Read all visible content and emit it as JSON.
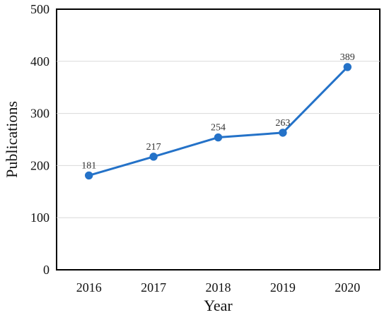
{
  "chart_data": {
    "type": "line",
    "title": "",
    "xlabel": "Year",
    "ylabel": "Publications",
    "categories": [
      "2016",
      "2017",
      "2018",
      "2019",
      "2020"
    ],
    "series": [
      {
        "values": [
          181,
          217,
          254,
          263,
          389
        ],
        "color": "#2472C8"
      }
    ],
    "data_labels": [
      "181",
      "217",
      "254",
      "263",
      "389"
    ],
    "ylim": [
      0,
      500
    ],
    "yticks": [
      "0",
      "100",
      "200",
      "300",
      "400",
      "500"
    ],
    "grid": true,
    "legend": "none"
  }
}
